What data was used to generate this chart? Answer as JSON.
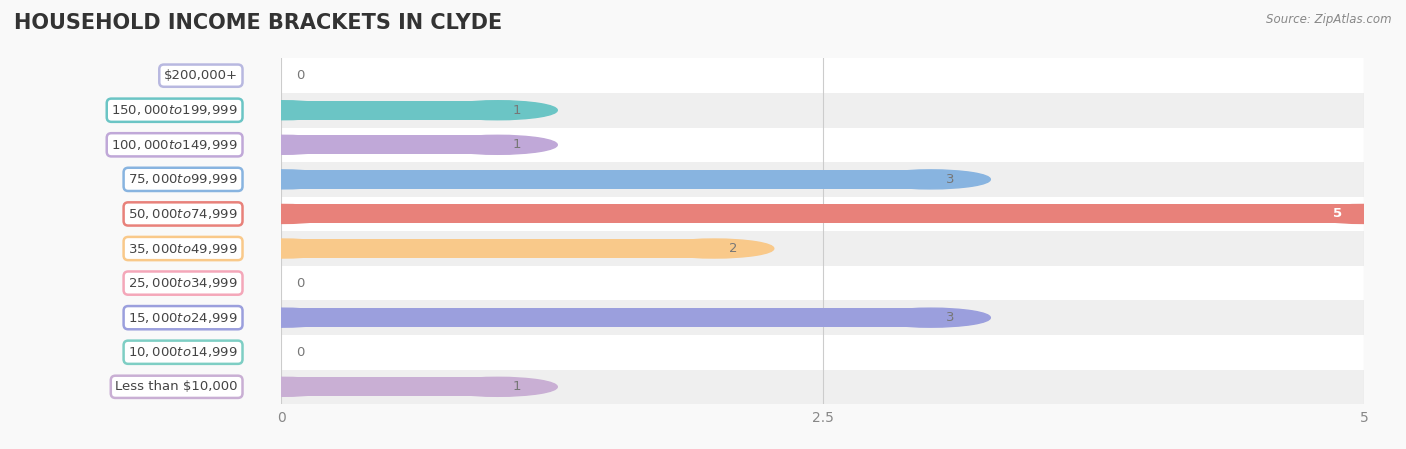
{
  "title": "HOUSEHOLD INCOME BRACKETS IN CLYDE",
  "source": "Source: ZipAtlas.com",
  "categories": [
    "Less than $10,000",
    "$10,000 to $14,999",
    "$15,000 to $24,999",
    "$25,000 to $34,999",
    "$35,000 to $49,999",
    "$50,000 to $74,999",
    "$75,000 to $99,999",
    "$100,000 to $149,999",
    "$150,000 to $199,999",
    "$200,000+"
  ],
  "values": [
    1,
    0,
    3,
    0,
    2,
    5,
    3,
    1,
    1,
    0
  ],
  "bar_colors": [
    "#c9afd4",
    "#7ecec4",
    "#9b9fdd",
    "#f4a7b9",
    "#f9c98a",
    "#e8817a",
    "#88b4e0",
    "#c0a8d8",
    "#6bc5c5",
    "#b8b8e0"
  ],
  "xlim": [
    0,
    5
  ],
  "xticks": [
    0,
    2.5,
    5
  ],
  "background_color": "#f9f9f9",
  "row_bg_colors": [
    "#efefef",
    "#ffffff"
  ],
  "title_fontsize": 15,
  "label_fontsize": 9.5,
  "tick_fontsize": 10,
  "bar_height": 0.55
}
